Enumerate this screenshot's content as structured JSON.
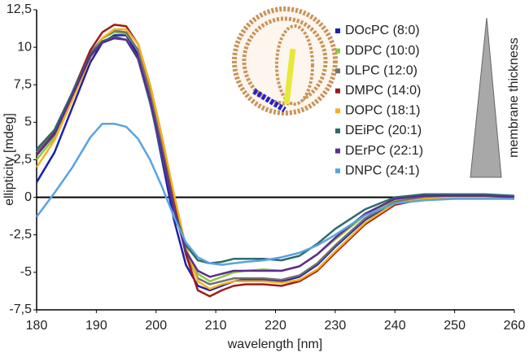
{
  "chart_data": {
    "type": "line",
    "x_label": "wavelength [nm]",
    "y_label": "ellipticity [mdeg]",
    "annotation": "membrane thickness",
    "x": [
      180,
      183,
      186,
      189,
      191,
      193,
      195,
      197,
      199,
      201,
      203,
      205,
      207,
      209,
      211,
      213,
      215,
      218,
      221,
      224,
      227,
      230,
      235,
      240,
      245,
      250,
      255,
      260
    ],
    "xlim": [
      180,
      260
    ],
    "xticks": [
      180,
      190,
      200,
      210,
      220,
      230,
      240,
      250,
      260
    ],
    "ylim": [
      -7.5,
      12.5
    ],
    "yticks": [
      {
        "value": -7.5,
        "label": "-7,5"
      },
      -5,
      {
        "value": -2.5,
        "label": "-2,5"
      },
      0,
      {
        "value": 2.5,
        "label": "2,5"
      },
      5,
      {
        "value": 7.5,
        "label": "7,5"
      },
      10,
      {
        "value": 12.5,
        "label": "12,5"
      }
    ],
    "series": [
      {
        "name": "DOcPC (8:0)",
        "color": "#1f1fa8",
        "values": [
          1.0,
          3,
          6,
          9,
          10.3,
          10.8,
          10.8,
          9.5,
          6.5,
          2.5,
          -1.5,
          -4.5,
          -5.9,
          -6.2,
          -5.9,
          -5.6,
          -5.5,
          -5.5,
          -5.6,
          -5.3,
          -4.5,
          -3.3,
          -1.5,
          -0.3,
          0,
          0.1,
          0.1,
          0
        ]
      },
      {
        "name": "DDPC (10:0)",
        "color": "#8dc63f",
        "values": [
          2.5,
          4,
          6.8,
          9.5,
          10.6,
          11,
          10.9,
          9.8,
          7,
          3.5,
          -0.5,
          -3.5,
          -5.1,
          -5.6,
          -5.3,
          -5,
          -4.9,
          -4.8,
          -4.9,
          -4.6,
          -3.8,
          -2.8,
          -1.2,
          -0.2,
          0,
          0.1,
          0.1,
          0
        ]
      },
      {
        "name": "DLPC (12:0)",
        "color": "#707070",
        "values": [
          3.0,
          4.5,
          7,
          9.6,
          10.6,
          11.1,
          11,
          9.8,
          7,
          3.5,
          -0.5,
          -3.8,
          -5.4,
          -5.8,
          -5.6,
          -5.4,
          -5.4,
          -5.4,
          -5.5,
          -5.2,
          -4.4,
          -3.2,
          -1.4,
          -0.3,
          0,
          0.1,
          0.1,
          0
        ]
      },
      {
        "name": "DMPC (14:0)",
        "color": "#9b1c1c",
        "values": [
          2.8,
          4.3,
          7,
          9.8,
          11,
          11.5,
          11.4,
          10.2,
          7.5,
          4,
          0,
          -3.8,
          -6.2,
          -6.6,
          -6.2,
          -5.9,
          -5.8,
          -5.8,
          -5.9,
          -5.6,
          -4.9,
          -3.7,
          -1.8,
          -0.5,
          -0.1,
          0,
          0,
          -0.1
        ]
      },
      {
        "name": "DOPC (18:1)",
        "color": "#f2b21b",
        "values": [
          2.0,
          3.8,
          6.5,
          9.3,
          10.6,
          11.2,
          11.2,
          10.2,
          7.5,
          4,
          0.2,
          -3.3,
          -5.6,
          -6.1,
          -5.8,
          -5.6,
          -5.6,
          -5.6,
          -5.7,
          -5.5,
          -4.8,
          -3.6,
          -1.7,
          -0.4,
          -0.1,
          0,
          0,
          0
        ]
      },
      {
        "name": "DEiPC (20:1)",
        "color": "#2e6b6b",
        "values": [
          3.2,
          4.5,
          7,
          9.5,
          10.4,
          10.7,
          10.5,
          9.2,
          6.3,
          2.8,
          -0.8,
          -3.2,
          -4.2,
          -4.4,
          -4.3,
          -4.1,
          -4.1,
          -4.1,
          -4.2,
          -3.9,
          -3.1,
          -2.1,
          -0.8,
          0,
          0.2,
          0.2,
          0.2,
          0.1
        ]
      },
      {
        "name": "DErPC (22:1)",
        "color": "#5b2d91",
        "values": [
          2.8,
          4.2,
          6.8,
          9.4,
          10.3,
          10.6,
          10.5,
          9.3,
          6.5,
          3,
          -0.8,
          -3.6,
          -4.9,
          -5.3,
          -5.1,
          -4.9,
          -4.9,
          -4.9,
          -4.9,
          -4.6,
          -3.8,
          -2.7,
          -1.1,
          -0.1,
          0.1,
          0.1,
          0.1,
          0
        ]
      },
      {
        "name": "DNPC (24:1)",
        "color": "#5aa3e0",
        "values": [
          -1.3,
          0.3,
          2.0,
          4.0,
          4.9,
          4.9,
          4.7,
          3.9,
          2.5,
          0.7,
          -1.3,
          -3.0,
          -4.0,
          -4.4,
          -4.5,
          -4.4,
          -4.3,
          -4.2,
          -4.0,
          -3.7,
          -3.2,
          -2.5,
          -1.2,
          -0.4,
          -0.2,
          -0.1,
          -0.1,
          -0.1
        ]
      }
    ]
  }
}
